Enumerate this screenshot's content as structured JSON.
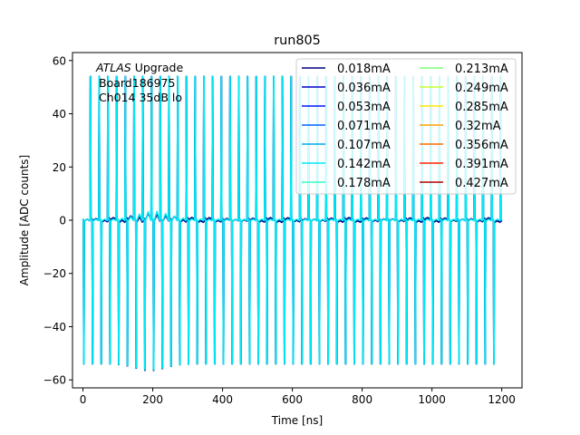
{
  "chart_data": {
    "type": "line",
    "title": "run805",
    "xlabel": "Time [ns]",
    "ylabel": "Amplitude [ADC counts]",
    "xlim": [
      -30,
      1258
    ],
    "ylim": [
      -63,
      63
    ],
    "xticks": [
      0,
      200,
      400,
      600,
      800,
      1000,
      1200
    ],
    "yticks": [
      -60,
      -40,
      -20,
      0,
      20,
      40,
      60
    ],
    "grid": false,
    "legend_placement": "top-right",
    "legend_columns": 2,
    "annotation": {
      "line1_italic": "ATLAS",
      "line1_rest": " Upgrade",
      "line2": "Board186975",
      "line3": "Ch014 35dB lo"
    },
    "pulse_period_ns": 25,
    "pulse_count": 48,
    "pulse_peak": 54,
    "pulse_trough": -54,
    "distortion_note_values": {
      "bump_peak": 3,
      "max_trough": -56.5,
      "center_ns": 190
    },
    "series": [
      {
        "name": "0.018mA",
        "color": "#00007f"
      },
      {
        "name": "0.036mA",
        "color": "#0000c8"
      },
      {
        "name": "0.053mA",
        "color": "#0019ff"
      },
      {
        "name": "0.071mA",
        "color": "#0064ff"
      },
      {
        "name": "0.107mA",
        "color": "#00a9e6"
      },
      {
        "name": "0.142mA",
        "color": "#00eaf5"
      },
      {
        "name": "0.178mA",
        "color": "#33ffc4"
      },
      {
        "name": "0.213mA",
        "color": "#7dff7a"
      },
      {
        "name": "0.249mA",
        "color": "#c4ff33"
      },
      {
        "name": "0.285mA",
        "color": "#ffe600"
      },
      {
        "name": "0.32mA",
        "color": "#ffa300"
      },
      {
        "name": "0.356mA",
        "color": "#ff6800"
      },
      {
        "name": "0.391mA",
        "color": "#ff2400"
      },
      {
        "name": "0.427mA",
        "color": "#b20000"
      }
    ]
  }
}
